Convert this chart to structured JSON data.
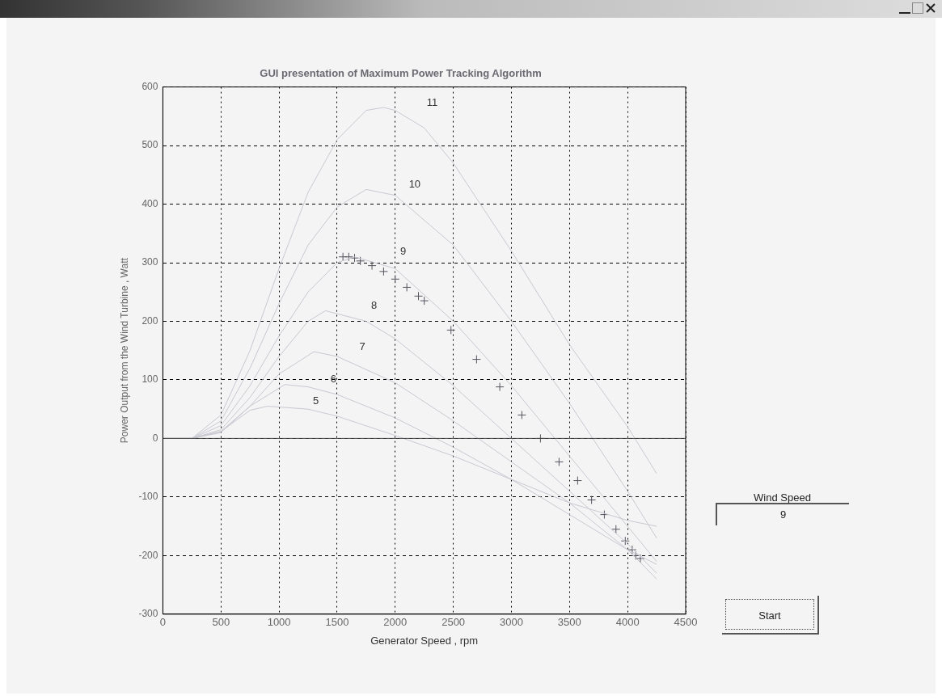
{
  "chart_data": {
    "type": "line",
    "title": "GUI presentation of Maximum Power Tracking Algorithm",
    "xlabel": "Generator Speed , rpm",
    "ylabel": "Power Output from the Wind Turbine , Watt",
    "xlim": [
      0,
      4500
    ],
    "xticks": [
      0,
      500,
      1000,
      1500,
      2000,
      2500,
      3000,
      3500,
      4000,
      4500
    ],
    "ylim": [
      -300,
      600
    ],
    "yticks": [
      -300,
      -200,
      -100,
      0,
      100,
      200,
      300,
      400,
      500,
      600
    ],
    "grid": true,
    "marker": "none",
    "series": [
      {
        "name": "5",
        "color": "#c8c8d2",
        "x": [
          0,
          250,
          500,
          750,
          900,
          1250,
          1500,
          2000,
          2500,
          3000,
          3500,
          4000,
          4250
        ],
        "values": [
          0,
          0,
          12,
          48,
          55,
          50,
          38,
          5,
          -30,
          -70,
          -110,
          -140,
          -150
        ]
      },
      {
        "name": "6",
        "color": "#c8c8d2",
        "x": [
          0,
          250,
          500,
          750,
          1050,
          1250,
          1500,
          2000,
          2500,
          3000,
          3500,
          4000,
          4250
        ],
        "values": [
          0,
          0,
          10,
          55,
          92,
          88,
          75,
          35,
          -15,
          -70,
          -130,
          -190,
          -215
        ]
      },
      {
        "name": "7",
        "color": "#c8c8d2",
        "x": [
          0,
          250,
          500,
          750,
          1000,
          1300,
          1500,
          2000,
          2500,
          3000,
          3500,
          4000,
          4250
        ],
        "values": [
          0,
          0,
          12,
          55,
          110,
          148,
          140,
          95,
          30,
          -40,
          -110,
          -190,
          -240
        ]
      },
      {
        "name": "8",
        "color": "#c8c8d2",
        "x": [
          0,
          250,
          500,
          750,
          1000,
          1250,
          1400,
          1750,
          2000,
          2500,
          3000,
          3500,
          4000,
          4250
        ],
        "values": [
          0,
          0,
          15,
          70,
          140,
          200,
          218,
          200,
          170,
          90,
          0,
          -90,
          -180,
          -230
        ]
      },
      {
        "name": "9",
        "color": "#c8c8d2",
        "x": [
          0,
          250,
          500,
          750,
          1000,
          1250,
          1500,
          1650,
          2000,
          2500,
          3000,
          3500,
          4000,
          4250
        ],
        "values": [
          0,
          0,
          22,
          90,
          175,
          250,
          300,
          310,
          290,
          200,
          90,
          -30,
          -150,
          -210
        ]
      },
      {
        "name": "10",
        "color": "#c8c8d2",
        "x": [
          0,
          250,
          500,
          750,
          1000,
          1250,
          1500,
          1750,
          2000,
          2500,
          3000,
          3500,
          4000,
          4250
        ],
        "values": [
          0,
          0,
          30,
          120,
          230,
          330,
          395,
          425,
          415,
          330,
          200,
          60,
          -90,
          -170
        ]
      },
      {
        "name": "11",
        "color": "#c8c8d2",
        "x": [
          0,
          250,
          500,
          750,
          1000,
          1250,
          1500,
          1750,
          1900,
          2000,
          2250,
          2500,
          3000,
          3500,
          4000,
          4250
        ],
        "values": [
          0,
          0,
          40,
          150,
          290,
          420,
          510,
          560,
          565,
          560,
          530,
          470,
          320,
          160,
          20,
          -60
        ]
      },
      {
        "type": "scatter",
        "marker": "cross",
        "color": "#555560",
        "x": [
          1550,
          1600,
          1650,
          1700,
          1800,
          1900,
          2000,
          2100,
          2200,
          2250,
          2480,
          2700,
          2900,
          3090,
          3250,
          3410,
          3570,
          3690,
          3800,
          3900,
          3980,
          4040,
          4070,
          4110
        ],
        "values": [
          310,
          310,
          308,
          303,
          295,
          285,
          272,
          258,
          243,
          235,
          185,
          135,
          88,
          40,
          0,
          -40,
          -72,
          -105,
          -130,
          -155,
          -175,
          -190,
          -200,
          -205
        ]
      }
    ],
    "ref_lines": [
      {
        "axis": "y",
        "value": 0,
        "color": "#444444"
      }
    ],
    "annotations": [
      "Wind Speed",
      "9",
      "Start"
    ]
  }
}
